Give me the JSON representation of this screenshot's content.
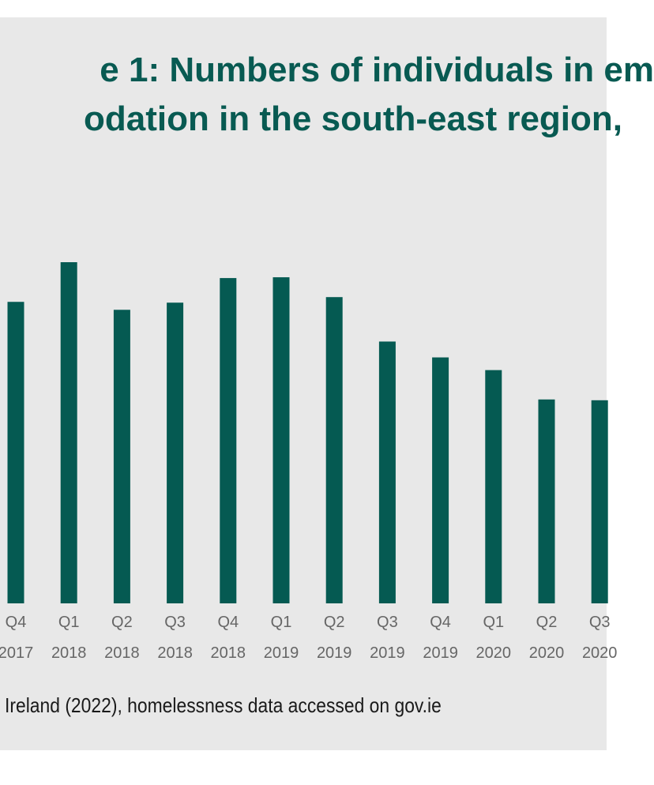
{
  "title_lines": [
    "e 1: Numbers of individuals in em",
    "odation in the south-east region,"
  ],
  "source": "Ireland (2022), homelessness data accessed on gov.ie",
  "colors": {
    "bar": "#055a52",
    "title": "#085a52",
    "panel": "#e8e8e8",
    "tick": "#666666"
  },
  "chart_data": {
    "type": "bar",
    "categories": [
      [
        "Q4",
        "2017"
      ],
      [
        "Q1",
        "2018"
      ],
      [
        "Q2",
        "2018"
      ],
      [
        "Q3",
        "2018"
      ],
      [
        "Q4",
        "2018"
      ],
      [
        "Q1",
        "2019"
      ],
      [
        "Q2",
        "2019"
      ],
      [
        "Q3",
        "2019"
      ],
      [
        "Q4",
        "2019"
      ],
      [
        "Q1",
        "2020"
      ],
      [
        "Q2",
        "2020"
      ],
      [
        "Q3",
        "2020"
      ]
    ],
    "series": [
      {
        "values": [
          380,
          430,
          370,
          379,
          410,
          411,
          386,
          330,
          310,
          294,
          257,
          256
        ]
      }
    ],
    "ylim": [
      0,
      430
    ],
    "grid": false,
    "legend": "none"
  }
}
